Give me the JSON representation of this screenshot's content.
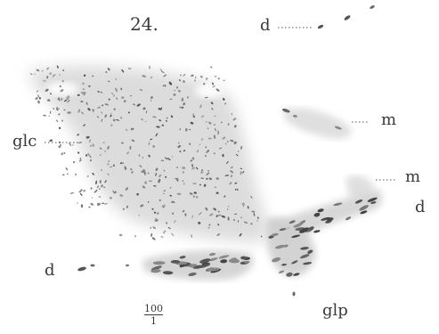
{
  "figure": {
    "number": "24.",
    "labels": {
      "d_top": "d",
      "glc": "glc",
      "m_upper": "m",
      "m_lower": "m",
      "d_right": "d",
      "d_left": "d",
      "glp": "glp"
    },
    "scale": {
      "numerator": "100",
      "denominator": "1"
    },
    "colors": {
      "ink": "#4a4a4a",
      "tissue": "#d9d9d9",
      "dense": "#6a6a6a"
    }
  }
}
